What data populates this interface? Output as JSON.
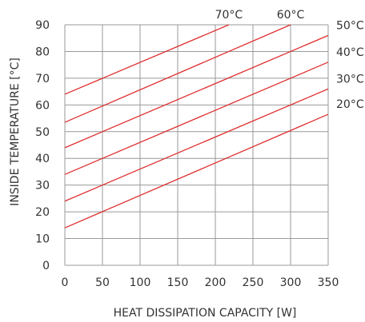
{
  "chart_data": {
    "type": "line",
    "title": "",
    "xlabel": "HEAT DISSIPATION CAPACITY [W]",
    "ylabel": "INSIDE TEMPERATURE [°C]",
    "xlim": [
      0,
      350
    ],
    "ylim": [
      0,
      90
    ],
    "x_ticks": [
      0,
      50,
      100,
      150,
      200,
      250,
      300,
      350
    ],
    "y_ticks": [
      0,
      10,
      20,
      30,
      40,
      50,
      60,
      70,
      80,
      90
    ],
    "grid": true,
    "line_color": "#e03030",
    "grid_color": "#9a9a9a",
    "series": [
      {
        "name": "20°C",
        "x": [
          0,
          350
        ],
        "y": [
          14,
          56.5
        ]
      },
      {
        "name": "30°C",
        "x": [
          0,
          350
        ],
        "y": [
          24,
          66
        ]
      },
      {
        "name": "40°C",
        "x": [
          0,
          350
        ],
        "y": [
          34,
          76
        ]
      },
      {
        "name": "50°C",
        "x": [
          0,
          350
        ],
        "y": [
          44,
          86
        ]
      },
      {
        "name": "60°C",
        "x": [
          0,
          300
        ],
        "y": [
          53.5,
          90
        ]
      },
      {
        "name": "70°C",
        "x": [
          0,
          218
        ],
        "y": [
          64,
          90
        ]
      }
    ]
  }
}
